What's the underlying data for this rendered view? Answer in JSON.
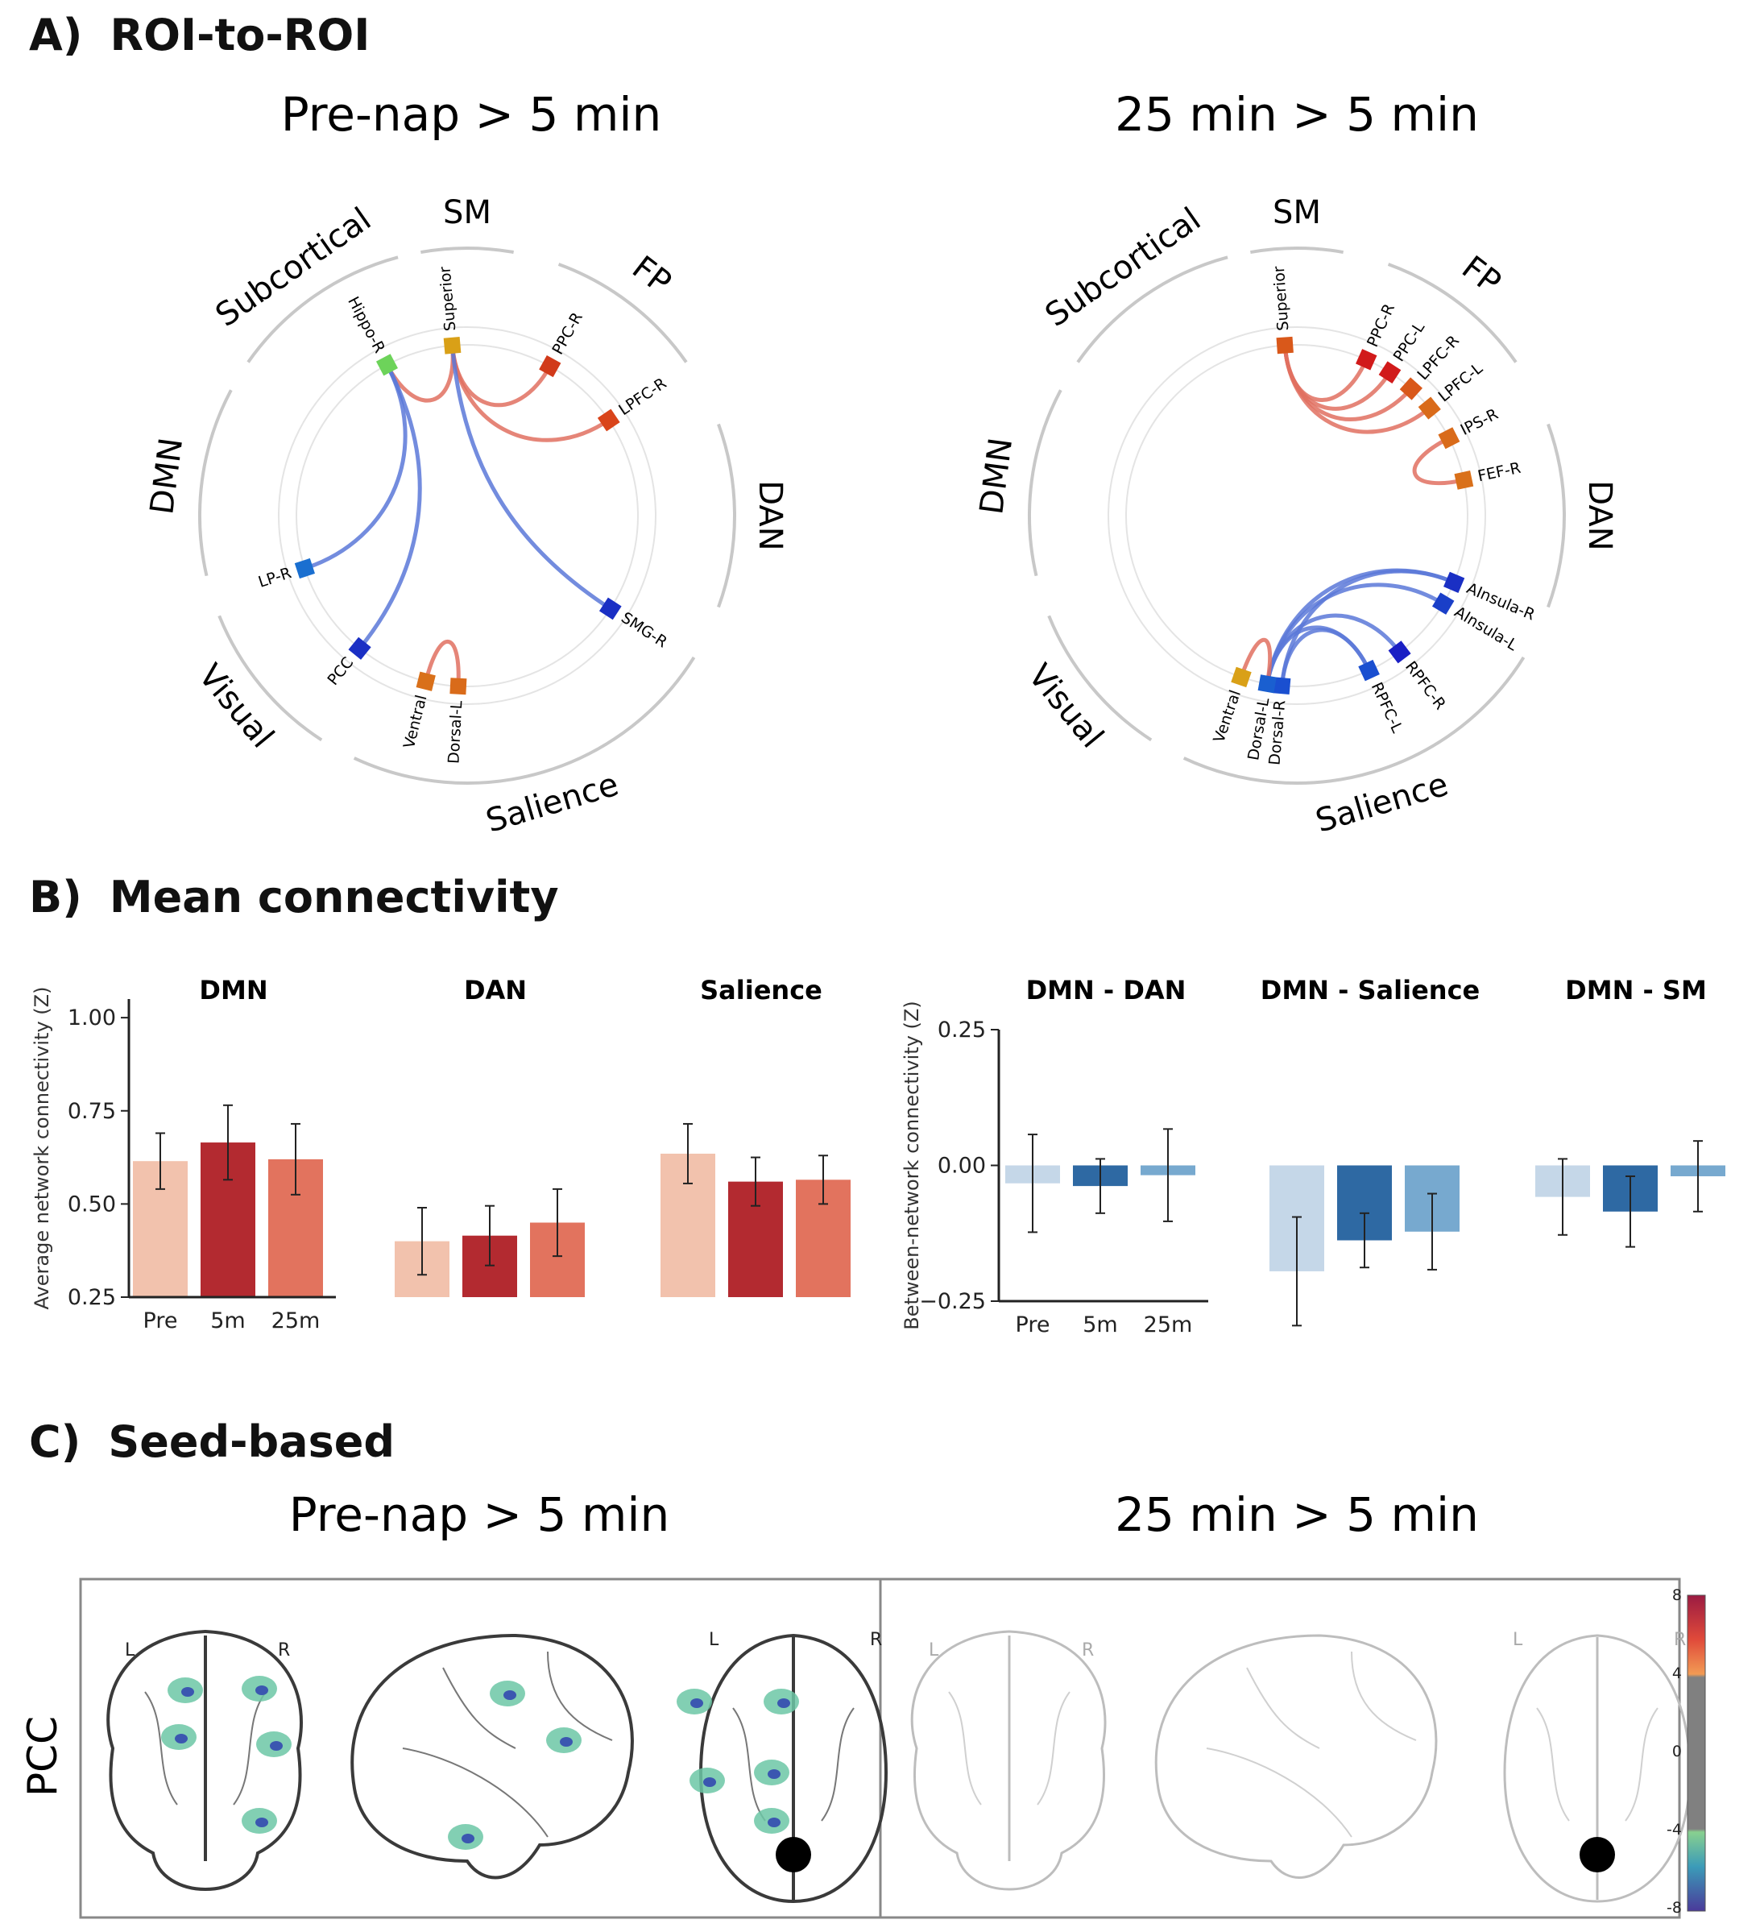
{
  "sections": {
    "a_letter": "A)",
    "a_title": "ROI-to-ROI",
    "b_letter": "B)",
    "b_title": "Mean connectivity",
    "c_letter": "C)",
    "c_title": "Seed-based"
  },
  "chart_data": [
    {
      "type": "chord",
      "title": "Pre-nap > 5 min",
      "networks": [
        "SM",
        "FP",
        "DAN",
        "Salience",
        "Visual",
        "DMN",
        "Subcortical"
      ],
      "nodes": [
        {
          "label": "Superior",
          "color": "#d9a017"
        },
        {
          "label": "PPC-R",
          "color": "#d13a1a"
        },
        {
          "label": "LPFC-R",
          "color": "#d9441a"
        },
        {
          "label": "SMG-R",
          "color": "#1a2fc4"
        },
        {
          "label": "Dorsal-L",
          "color": "#d96b1a"
        },
        {
          "label": "Ventral",
          "color": "#d9701a"
        },
        {
          "label": "PCC",
          "color": "#1a2fc4"
        },
        {
          "label": "LP-R",
          "color": "#1a6fd0"
        },
        {
          "label": "Hippo-R",
          "color": "#6dd35a"
        }
      ],
      "edges": [
        {
          "from": "Superior",
          "to": "PPC-R",
          "sign": "positive"
        },
        {
          "from": "Superior",
          "to": "LPFC-R",
          "sign": "positive"
        },
        {
          "from": "Superior",
          "to": "Hippo-R",
          "sign": "positive"
        },
        {
          "from": "Superior",
          "to": "SMG-R",
          "sign": "negative"
        },
        {
          "from": "Hippo-R",
          "to": "LP-R",
          "sign": "negative"
        },
        {
          "from": "Hippo-R",
          "to": "PCC",
          "sign": "negative"
        },
        {
          "from": "Ventral",
          "to": "Dorsal-L",
          "sign": "positive"
        }
      ]
    },
    {
      "type": "chord",
      "title": "25 min > 5 min",
      "networks": [
        "SM",
        "FP",
        "DAN",
        "Salience",
        "Visual",
        "DMN",
        "Subcortical"
      ],
      "nodes": [
        {
          "label": "Superior",
          "color": "#d9581a"
        },
        {
          "label": "PPC-R",
          "color": "#d11a1a"
        },
        {
          "label": "PPC-L",
          "color": "#d11a1a"
        },
        {
          "label": "LPFC-R",
          "color": "#d9581a"
        },
        {
          "label": "LPFC-L",
          "color": "#d96b1a"
        },
        {
          "label": "IPS-R",
          "color": "#d96b1a"
        },
        {
          "label": "FEF-R",
          "color": "#d9701a"
        },
        {
          "label": "AInsula-R",
          "color": "#1a2fc4"
        },
        {
          "label": "AInsula-L",
          "color": "#1a3fc8"
        },
        {
          "label": "RPFC-R",
          "color": "#1a1fc4"
        },
        {
          "label": "RPFC-L",
          "color": "#1a4fd0"
        },
        {
          "label": "Dorsal-R",
          "color": "#1a4fd0"
        },
        {
          "label": "Dorsal-L",
          "color": "#1a5fd0"
        },
        {
          "label": "Ventral",
          "color": "#d9a017"
        }
      ],
      "edges": [
        {
          "from": "Superior",
          "to": "PPC-R",
          "sign": "positive"
        },
        {
          "from": "Superior",
          "to": "PPC-L",
          "sign": "positive"
        },
        {
          "from": "Superior",
          "to": "LPFC-R",
          "sign": "positive"
        },
        {
          "from": "Superior",
          "to": "LPFC-L",
          "sign": "positive"
        },
        {
          "from": "IPS-R",
          "to": "FEF-R",
          "sign": "positive"
        },
        {
          "from": "Dorsal-L",
          "to": "AInsula-R",
          "sign": "negative"
        },
        {
          "from": "Dorsal-L",
          "to": "AInsula-L",
          "sign": "negative"
        },
        {
          "from": "Dorsal-L",
          "to": "RPFC-R",
          "sign": "negative"
        },
        {
          "from": "Dorsal-L",
          "to": "RPFC-L",
          "sign": "negative"
        },
        {
          "from": "Dorsal-R",
          "to": "AInsula-R",
          "sign": "negative"
        },
        {
          "from": "Dorsal-R",
          "to": "RPFC-L",
          "sign": "negative"
        },
        {
          "from": "Ventral",
          "to": "Dorsal-L",
          "sign": "positive"
        }
      ]
    },
    {
      "type": "bar",
      "group": "within",
      "ylabel": "Average network connectivity (Z)",
      "ylim": [
        0.25,
        1.05
      ],
      "yticks": [
        "0.25",
        "0.50",
        "0.75",
        "1.00"
      ],
      "categories": [
        "Pre",
        "5m",
        "25m"
      ],
      "colors": [
        "#f2c2ad",
        "#b32a30",
        "#e2735e"
      ],
      "panels": [
        {
          "title": "DMN",
          "values": [
            0.615,
            0.665,
            0.62
          ],
          "err": [
            0.075,
            0.1,
            0.095
          ]
        },
        {
          "title": "DAN",
          "values": [
            0.4,
            0.415,
            0.45
          ],
          "err": [
            0.09,
            0.08,
            0.09
          ]
        },
        {
          "title": "Salience",
          "values": [
            0.635,
            0.56,
            0.565
          ],
          "err": [
            0.08,
            0.065,
            0.065
          ]
        }
      ]
    },
    {
      "type": "bar",
      "group": "between",
      "ylabel": "Between-network connectivity (Z)",
      "ylim": [
        -0.25,
        0.25
      ],
      "yticks": [
        "−0.25",
        "0.00",
        "0.25"
      ],
      "categories": [
        "Pre",
        "5m",
        "25m"
      ],
      "colors": [
        "#c5d7e8",
        "#2e69a3",
        "#77a9cf"
      ],
      "panels": [
        {
          "title": "DMN - DAN",
          "values": [
            -0.033,
            -0.038,
            -0.018
          ],
          "err": [
            0.09,
            0.05,
            0.085
          ]
        },
        {
          "title": "DMN - Salience",
          "values": [
            -0.195,
            -0.138,
            -0.122
          ],
          "err": [
            0.1,
            0.05,
            0.07
          ]
        },
        {
          "title": "DMN - SM",
          "values": [
            -0.058,
            -0.085,
            -0.02
          ],
          "err": [
            0.07,
            0.065,
            0.065
          ]
        }
      ]
    }
  ],
  "seed": {
    "row_label": "PCC",
    "titles": [
      "Pre-nap > 5 min",
      "25 min > 5 min"
    ],
    "orient_left": "L",
    "orient_right": "R",
    "colorbar_ticks": [
      "8",
      "4",
      "0",
      "-4",
      "-8"
    ]
  }
}
